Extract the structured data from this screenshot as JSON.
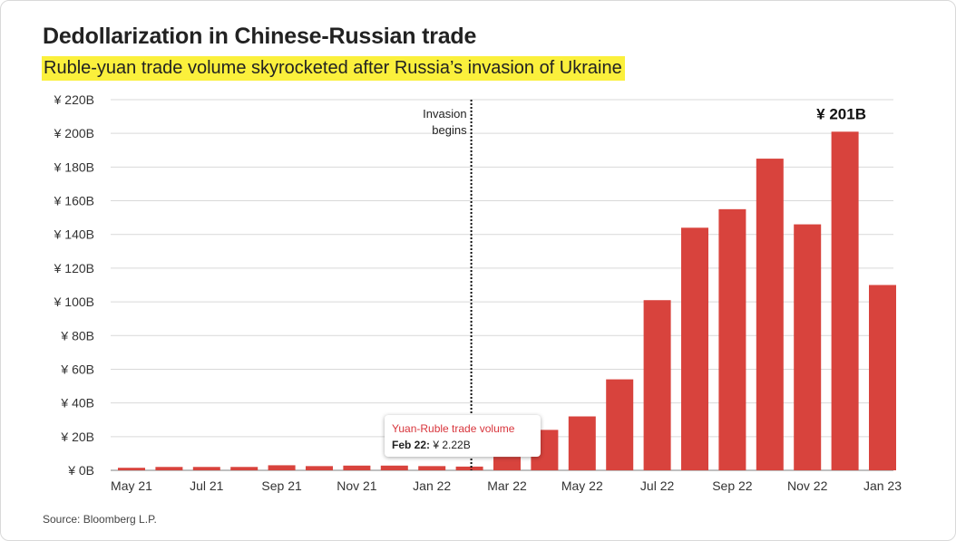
{
  "header": {
    "title": "Dedollarization in Chinese-Russian trade",
    "subtitle": "Ruble-yuan trade volume skyrocketed after Russia’s invasion of Ukraine"
  },
  "source": "Source: Bloomberg L.P.",
  "colors": {
    "bar": "#d8433d",
    "highlight": "#fbf03c",
    "grid": "#d9d9d9",
    "tooltip_title": "#d8343b"
  },
  "tooltip": {
    "title": "Yuan-Ruble trade volume",
    "label": "Feb 22:",
    "value": "¥ 2.22B"
  },
  "chart_data": {
    "type": "bar",
    "title": "Dedollarization in Chinese-Russian trade",
    "subtitle": "Ruble-yuan trade volume skyrocketed after Russia’s invasion of Ukraine",
    "categories": [
      "May 21",
      "Jun 21",
      "Jul 21",
      "Aug 21",
      "Sep 21",
      "Oct 21",
      "Nov 21",
      "Dec 21",
      "Jan 22",
      "Feb 22",
      "Mar 22",
      "Apr 22",
      "May 22",
      "Jun 22",
      "Jul 22",
      "Aug 22",
      "Sep 22",
      "Oct 22",
      "Nov 22",
      "Dec 22",
      "Jan 23"
    ],
    "values": [
      1.5,
      2,
      2,
      2,
      3,
      2.5,
      2.8,
      2.8,
      2.5,
      2.22,
      8,
      24,
      32,
      54,
      101,
      144,
      155,
      185,
      146,
      201,
      110
    ],
    "unit": "¥ B",
    "ylim": [
      0,
      220
    ],
    "yticks": [
      0,
      20,
      40,
      60,
      80,
      100,
      120,
      140,
      160,
      180,
      200,
      220
    ],
    "ytick_labels": [
      "¥ 0B",
      "¥ 20B",
      "¥ 40B",
      "¥ 60B",
      "¥ 80B",
      "¥ 100B",
      "¥ 120B",
      "¥ 140B",
      "¥ 160B",
      "¥ 180B",
      "¥ 200B",
      "¥ 220B"
    ],
    "xtick_labels": [
      "May 21",
      "Jul 21",
      "Sep 21",
      "Nov 21",
      "Jan 22",
      "Mar 22",
      "May 22",
      "Jul 22",
      "Sep 22",
      "Nov 22",
      "Jan 23"
    ],
    "xtick_indices": [
      0,
      2,
      4,
      6,
      8,
      10,
      12,
      14,
      16,
      18,
      20
    ],
    "grid": true,
    "annotations": [
      {
        "text_lines": [
          "Invasion",
          "begins"
        ],
        "position_value": 9.5,
        "style": "dotted-line"
      },
      {
        "text": "¥ 201B",
        "category": "Dec 22"
      }
    ]
  }
}
